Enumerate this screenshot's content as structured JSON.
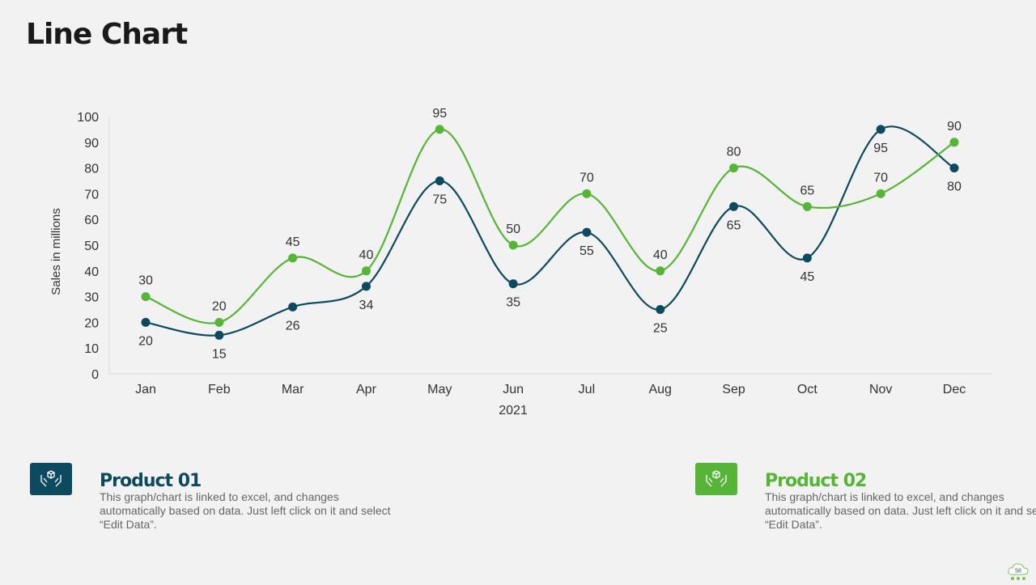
{
  "title": "Line Chart",
  "colors": {
    "product01": "#0e4a5f",
    "product02": "#56b436",
    "text": "#333333"
  },
  "chart_data": {
    "type": "line",
    "smooth": true,
    "categories": [
      "Jan",
      "Feb",
      "Mar",
      "Apr",
      "May",
      "Jun",
      "Jul",
      "Aug",
      "Sep",
      "Oct",
      "Nov",
      "Dec"
    ],
    "series": [
      {
        "name": "Product 01",
        "color": "#0e4a5f",
        "values": [
          20,
          15,
          26,
          34,
          75,
          35,
          55,
          25,
          65,
          45,
          95,
          80
        ]
      },
      {
        "name": "Product 02",
        "color": "#56b436",
        "values": [
          30,
          20,
          45,
          40,
          95,
          50,
          70,
          40,
          80,
          65,
          70,
          90
        ]
      }
    ],
    "xlabel": "2021",
    "ylabel": "Sales in millions",
    "ylim": [
      0,
      100
    ],
    "yticks": [
      0,
      10,
      20,
      30,
      40,
      50,
      60,
      70,
      80,
      90,
      100
    ],
    "grid": false,
    "data_labels": true
  },
  "panels": [
    {
      "title": "Product 01",
      "icon": "hands-box-icon",
      "description": "This graph/chart is linked to excel, and changes automatically based on data. Just left click on it and select “Edit Data”."
    },
    {
      "title": "Product 02",
      "icon": "hands-box-icon",
      "description": "This graph/chart is linked to excel, and changes automatically based on data. Just left click on it and select “Edit Data”."
    }
  ],
  "page_number": "58"
}
